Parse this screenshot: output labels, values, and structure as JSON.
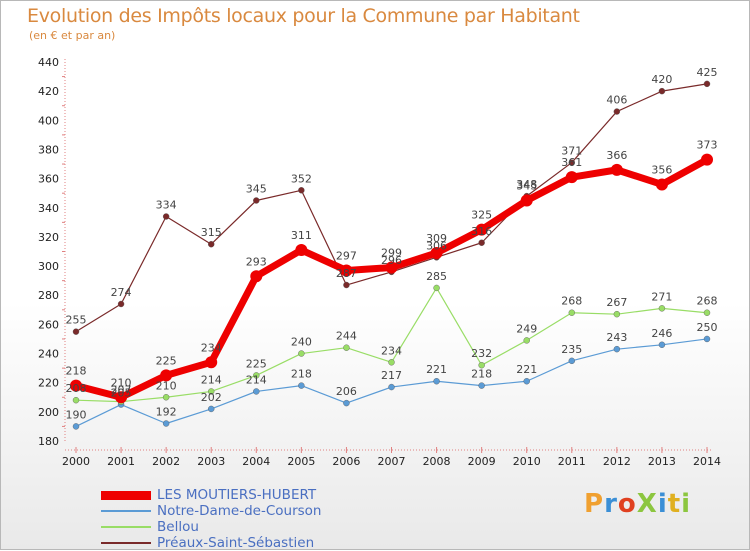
{
  "title": "Evolution des Impôts locaux pour la Commune par Habitant",
  "subtitle": "(en € et par an)",
  "logo": {
    "text": "ProXiti",
    "colors": [
      "#f0a030",
      "#3b8fd6",
      "#e04020",
      "#8cc63f",
      "#3b8fd6",
      "#e0b020",
      "#8cc63f"
    ]
  },
  "chart_data": {
    "type": "line",
    "x": [
      "2000",
      "2001",
      "2002",
      "2003",
      "2004",
      "2005",
      "2006",
      "2007",
      "2008",
      "2009",
      "2010",
      "2011",
      "2012",
      "2013",
      "2014"
    ],
    "ylim": [
      180,
      440
    ],
    "yticks": [
      180,
      200,
      220,
      240,
      260,
      280,
      300,
      320,
      340,
      360,
      380,
      400,
      420,
      440
    ],
    "grid": false,
    "legend_position": "bottom-left",
    "series": [
      {
        "name": "LES MOUTIERS-HUBERT",
        "color": "#ee0000",
        "values": [
          218,
          210,
          225,
          234,
          293,
          311,
          297,
          299,
          309,
          325,
          345,
          361,
          366,
          356,
          373
        ]
      },
      {
        "name": "Notre-Dame-de-Courson",
        "color": "#5b9bd5",
        "values": [
          190,
          205,
          192,
          202,
          214,
          218,
          206,
          217,
          221,
          218,
          221,
          235,
          243,
          246,
          250
        ]
      },
      {
        "name": "Bellou",
        "color": "#99dd66",
        "values": [
          208,
          207,
          210,
          214,
          225,
          240,
          244,
          234,
          285,
          232,
          249,
          268,
          267,
          271,
          268
        ]
      },
      {
        "name": "Préaux-Saint-Sébastien",
        "color": "#7a2a2a",
        "values": [
          255,
          274,
          334,
          315,
          345,
          352,
          287,
          296,
          306,
          316,
          348,
          371,
          406,
          420,
          425
        ]
      }
    ]
  }
}
